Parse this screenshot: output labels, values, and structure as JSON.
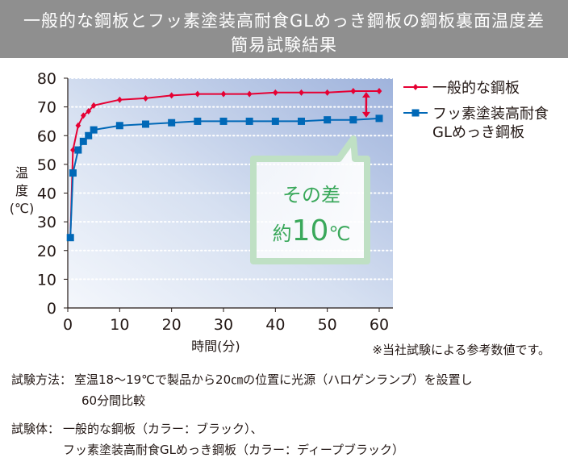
{
  "title": {
    "line1": "一般的な鋼板とフッ素塗装高耐食GLめっき鋼板の鋼板裏面温度差",
    "line2": "簡易試験結果"
  },
  "chart_data": {
    "type": "line",
    "xlabel": "時間(分)",
    "ylabel": [
      "温",
      "度",
      "(℃)"
    ],
    "xlim": [
      0,
      60
    ],
    "ylim": [
      0,
      80
    ],
    "x_ticks": [
      0,
      10,
      20,
      30,
      40,
      50,
      60
    ],
    "y_ticks": [
      0,
      10,
      20,
      30,
      40,
      50,
      60,
      70,
      80
    ],
    "grid": "horizontal dotted",
    "legend_position": "right",
    "series": [
      {
        "name": "一般的な鋼板",
        "legend_lines": [
          "一般的な鋼板"
        ],
        "color": "#e60033",
        "marker": "diamond",
        "x": [
          0.5,
          1,
          2,
          3,
          4,
          5,
          10,
          15,
          20,
          25,
          30,
          35,
          40,
          45,
          50,
          55,
          60
        ],
        "y": [
          24.5,
          55,
          63.5,
          67,
          68.5,
          70.5,
          72.5,
          73,
          74,
          74.5,
          74.5,
          74.5,
          75,
          75,
          75,
          75.5,
          75.5
        ]
      },
      {
        "name": "フッ素塗装高耐食GLめっき鋼板",
        "legend_lines": [
          "フッ素塗装高耐食",
          "GLめっき鋼板"
        ],
        "color": "#0068b7",
        "marker": "square",
        "x": [
          0.5,
          1,
          2,
          3,
          4,
          5,
          10,
          15,
          20,
          25,
          30,
          35,
          40,
          45,
          50,
          55,
          60
        ],
        "y": [
          24.5,
          47,
          55,
          58,
          60,
          62,
          63.5,
          64,
          64.5,
          65,
          65,
          65,
          65,
          65,
          65.5,
          65.5,
          66
        ]
      }
    ],
    "annotation": {
      "line1": "その差",
      "prefix": "約",
      "number": "10",
      "unit": "℃",
      "x": 57.5,
      "y_from": 66,
      "y_to": 75.5
    }
  },
  "footnote": "※当社試験による参考数値です。",
  "method": {
    "label": "試験方法：",
    "line1": "室温18～19℃で製品から20㎝の位置に光源（ハロゲンランプ）を設置し",
    "line2": "60分間比較"
  },
  "specimen": {
    "label": "試験体：",
    "line1": "一般的な鋼板（カラー：ブラック）、",
    "line2": "フッ素塗装高耐食GLめっき鋼板（カラー：ディープブラック）"
  }
}
